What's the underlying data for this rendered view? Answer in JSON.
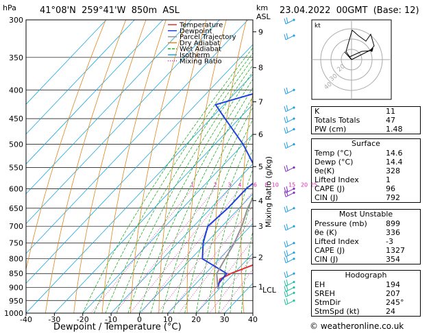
{
  "header": {
    "location": "41°08'N  259°41'W  850m  ASL",
    "datetime": "23.04.2022  00GMT  (Base: 12)"
  },
  "legend": [
    {
      "label": "Temperature",
      "color": "#e03030"
    },
    {
      "label": "Dewpoint",
      "color": "#2040e0"
    },
    {
      "label": "Parcel Trajectory",
      "color": "#909090"
    },
    {
      "label": "Dry Adiabat",
      "color": "#e0841c"
    },
    {
      "label": "Wet Adiabat",
      "color": "#20b020"
    },
    {
      "label": "Isotherm",
      "color": "#18a8e0"
    },
    {
      "label": "Mixing Ratio",
      "color": "#e020b0"
    }
  ],
  "axes": {
    "hpa_label": "hPa",
    "km_label": "km",
    "asl_label": "ASL",
    "xlabel": "Dewpoint / Temperature (°C)",
    "right_label": "Mixing Ratio (g/kg)",
    "lcl_label": "LCL"
  },
  "hodograph": {
    "label": "kt",
    "rings": [
      "40",
      "30",
      "20"
    ]
  },
  "indices": [
    {
      "k": "K",
      "v": "11"
    },
    {
      "k": "Totals Totals",
      "v": "47"
    },
    {
      "k": "PW (cm)",
      "v": "1.48"
    }
  ],
  "surface": {
    "title": "Surface",
    "rows": [
      {
        "k": "Temp (°C)",
        "v": "14.6"
      },
      {
        "k": "Dewp (°C)",
        "v": "14.4"
      },
      {
        "k": "θe(K)",
        "v": "328"
      },
      {
        "k": "Lifted Index",
        "v": "1"
      },
      {
        "k": "CAPE (J)",
        "v": "96"
      },
      {
        "k": "CIN (J)",
        "v": "792"
      }
    ]
  },
  "most_unstable": {
    "title": "Most Unstable",
    "rows": [
      {
        "k": "Pressure (mb)",
        "v": "899"
      },
      {
        "k": "θe (K)",
        "v": "336"
      },
      {
        "k": "Lifted Index",
        "v": "-3"
      },
      {
        "k": "CAPE (J)",
        "v": "1327"
      },
      {
        "k": "CIN (J)",
        "v": "354"
      }
    ]
  },
  "hodograph_table": {
    "title": "Hodograph",
    "rows": [
      {
        "k": "EH",
        "v": "194"
      },
      {
        "k": "SREH",
        "v": "207"
      },
      {
        "k": "StmDir",
        "v": "245°"
      },
      {
        "k": "StmSpd (kt)",
        "v": "24"
      }
    ]
  },
  "footer": "© weatheronline.co.uk",
  "chart_data": {
    "type": "line",
    "xlim": [
      -40,
      40
    ],
    "pressure_range": [
      1000,
      300
    ],
    "pressure_ticks": [
      300,
      350,
      400,
      450,
      500,
      550,
      600,
      650,
      700,
      750,
      800,
      850,
      900,
      950,
      1000
    ],
    "temp_ticks": [
      -40,
      -30,
      -20,
      -10,
      0,
      10,
      20,
      30,
      40
    ],
    "km_ticks": [
      {
        "km": "1",
        "p": 897
      },
      {
        "km": "2",
        "p": 795
      },
      {
        "km": "3",
        "p": 700
      },
      {
        "km": "4",
        "p": 630
      },
      {
        "km": "5",
        "p": 548
      },
      {
        "km": "6",
        "p": 480
      },
      {
        "km": "7",
        "p": 420
      },
      {
        "km": "8",
        "p": 365
      },
      {
        "km": "9",
        "p": 315
      }
    ],
    "mixing_ratio_labels": [
      "1",
      "2",
      "3",
      "4",
      "6",
      "8",
      "10",
      "15",
      "20",
      "25"
    ],
    "series": [
      {
        "name": "Temperature",
        "color": "#e03030",
        "points": [
          [
            905,
            19.5
          ],
          [
            870,
            17
          ],
          [
            850,
            19
          ],
          [
            800,
            27.5
          ],
          [
            750,
            24
          ],
          [
            700,
            20
          ],
          [
            650,
            15
          ],
          [
            600,
            10
          ],
          [
            550,
            6
          ],
          [
            500,
            3
          ],
          [
            450,
            -2
          ],
          [
            400,
            -9
          ],
          [
            350,
            -18
          ],
          [
            310,
            -24
          ],
          [
            300,
            -24
          ]
        ]
      },
      {
        "name": "Dewpoint",
        "color": "#2040e0",
        "points": [
          [
            905,
            19.5
          ],
          [
            885,
            18
          ],
          [
            850,
            17.5
          ],
          [
            800,
            4
          ],
          [
            750,
            -1
          ],
          [
            700,
            -5
          ],
          [
            650,
            -4
          ],
          [
            600,
            -4
          ],
          [
            575,
            -3
          ],
          [
            550,
            -8
          ],
          [
            500,
            -20
          ],
          [
            450,
            -35
          ],
          [
            425,
            -43
          ],
          [
            400,
            -30
          ],
          [
            350,
            -36
          ],
          [
            310,
            -38
          ],
          [
            300,
            -37
          ]
        ]
      },
      {
        "name": "Parcel Trajectory",
        "color": "#909090",
        "points": [
          [
            905,
            19.5
          ],
          [
            850,
            14
          ],
          [
            800,
            12
          ],
          [
            750,
            10
          ],
          [
            700,
            7
          ],
          [
            650,
            3
          ],
          [
            600,
            0
          ],
          [
            550,
            -3
          ],
          [
            500,
            -7
          ],
          [
            450,
            -12
          ],
          [
            400,
            -17
          ],
          [
            350,
            -22
          ],
          [
            300,
            -27
          ]
        ]
      }
    ]
  }
}
